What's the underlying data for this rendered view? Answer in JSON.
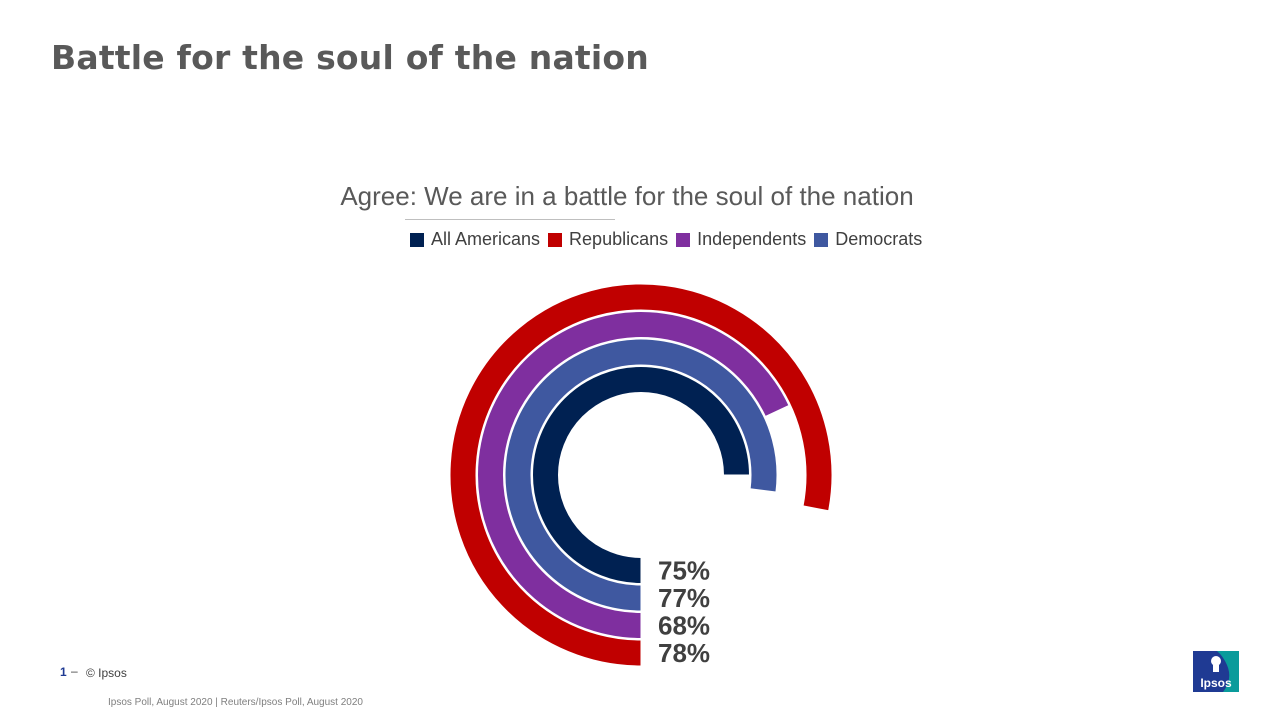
{
  "slide": {
    "title": "Battle for the soul of the nation",
    "page_number": "1",
    "dash": "–",
    "copyright": "© Ipsos",
    "source": "Ipsos Poll,  August 2020 | Reuters/Ipsos Poll,  August 2020",
    "logo_text": "Ipsos"
  },
  "colors": {
    "all_americans": "#002152",
    "republicans": "#c00000",
    "independents": "#7f2f9f",
    "democrats": "#3f58a0",
    "title_gray": "#595959",
    "logo_blue": "#1f3a93",
    "logo_teal": "#0a9b9b"
  },
  "chart_data": {
    "type": "radial-bar",
    "title": "Agree: We are in a battle for the soul of the nation",
    "legend_position": "top",
    "max_value": 100,
    "series": [
      {
        "name": "All Americans",
        "value": 75,
        "label": "75%",
        "color": "#002152"
      },
      {
        "name": "Republicans",
        "value": 78,
        "label": "78%",
        "color": "#c00000"
      },
      {
        "name": "Independents",
        "value": 68,
        "label": "68%",
        "color": "#7f2f9f"
      },
      {
        "name": "Democrats",
        "value": 77,
        "label": "77%",
        "color": "#3f58a0"
      }
    ]
  }
}
